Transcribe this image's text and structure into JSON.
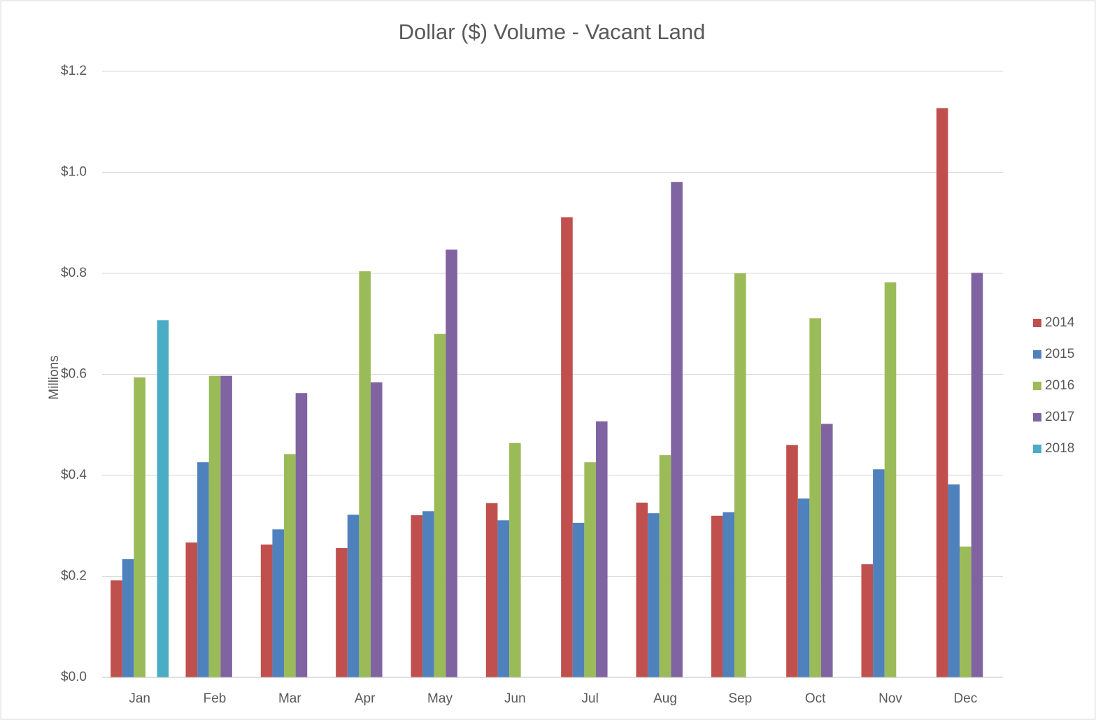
{
  "chart_data": {
    "type": "bar",
    "title": "Dollar ($) Volume - Vacant Land",
    "y_label": "Millions",
    "categories": [
      "Jan",
      "Feb",
      "Mar",
      "Apr",
      "May",
      "Jun",
      "Jul",
      "Aug",
      "Sep",
      "Oct",
      "Nov",
      "Dec"
    ],
    "series": [
      {
        "name": "2014",
        "color": "#c0504d",
        "values": [
          0.192,
          0.267,
          0.263,
          0.256,
          0.321,
          0.345,
          0.911,
          0.346,
          0.32,
          0.46,
          0.224,
          1.127
        ]
      },
      {
        "name": "2015",
        "color": "#4f81bd",
        "values": [
          0.234,
          0.426,
          0.293,
          0.322,
          0.329,
          0.311,
          0.306,
          0.325,
          0.327,
          0.354,
          0.412,
          0.382
        ]
      },
      {
        "name": "2016",
        "color": "#9bbb59",
        "values": [
          0.594,
          0.597,
          0.442,
          0.804,
          0.68,
          0.464,
          0.426,
          0.44,
          0.8,
          0.711,
          0.782,
          0.259
        ]
      },
      {
        "name": "2017",
        "color": "#8064a2",
        "values": [
          null,
          0.597,
          0.563,
          0.584,
          0.847,
          null,
          0.507,
          0.981,
          null,
          0.502,
          null,
          0.801
        ]
      },
      {
        "name": "2018",
        "color": "#4bacc6",
        "values": [
          0.707,
          null,
          null,
          null,
          null,
          null,
          null,
          null,
          null,
          null,
          null,
          null
        ]
      }
    ],
    "ylim": [
      0,
      1.2
    ],
    "yticks": [
      {
        "value": 0,
        "label": "$0.0"
      },
      {
        "value": 0.2,
        "label": "$0.2"
      },
      {
        "value": 0.4,
        "label": "$0.4"
      },
      {
        "value": 0.6,
        "label": "$0.6"
      },
      {
        "value": 0.8,
        "label": "$0.8"
      },
      {
        "value": 1.0,
        "label": "$1.0"
      },
      {
        "value": 1.2,
        "label": "$1.2"
      }
    ],
    "grid": true,
    "legend": "right"
  }
}
